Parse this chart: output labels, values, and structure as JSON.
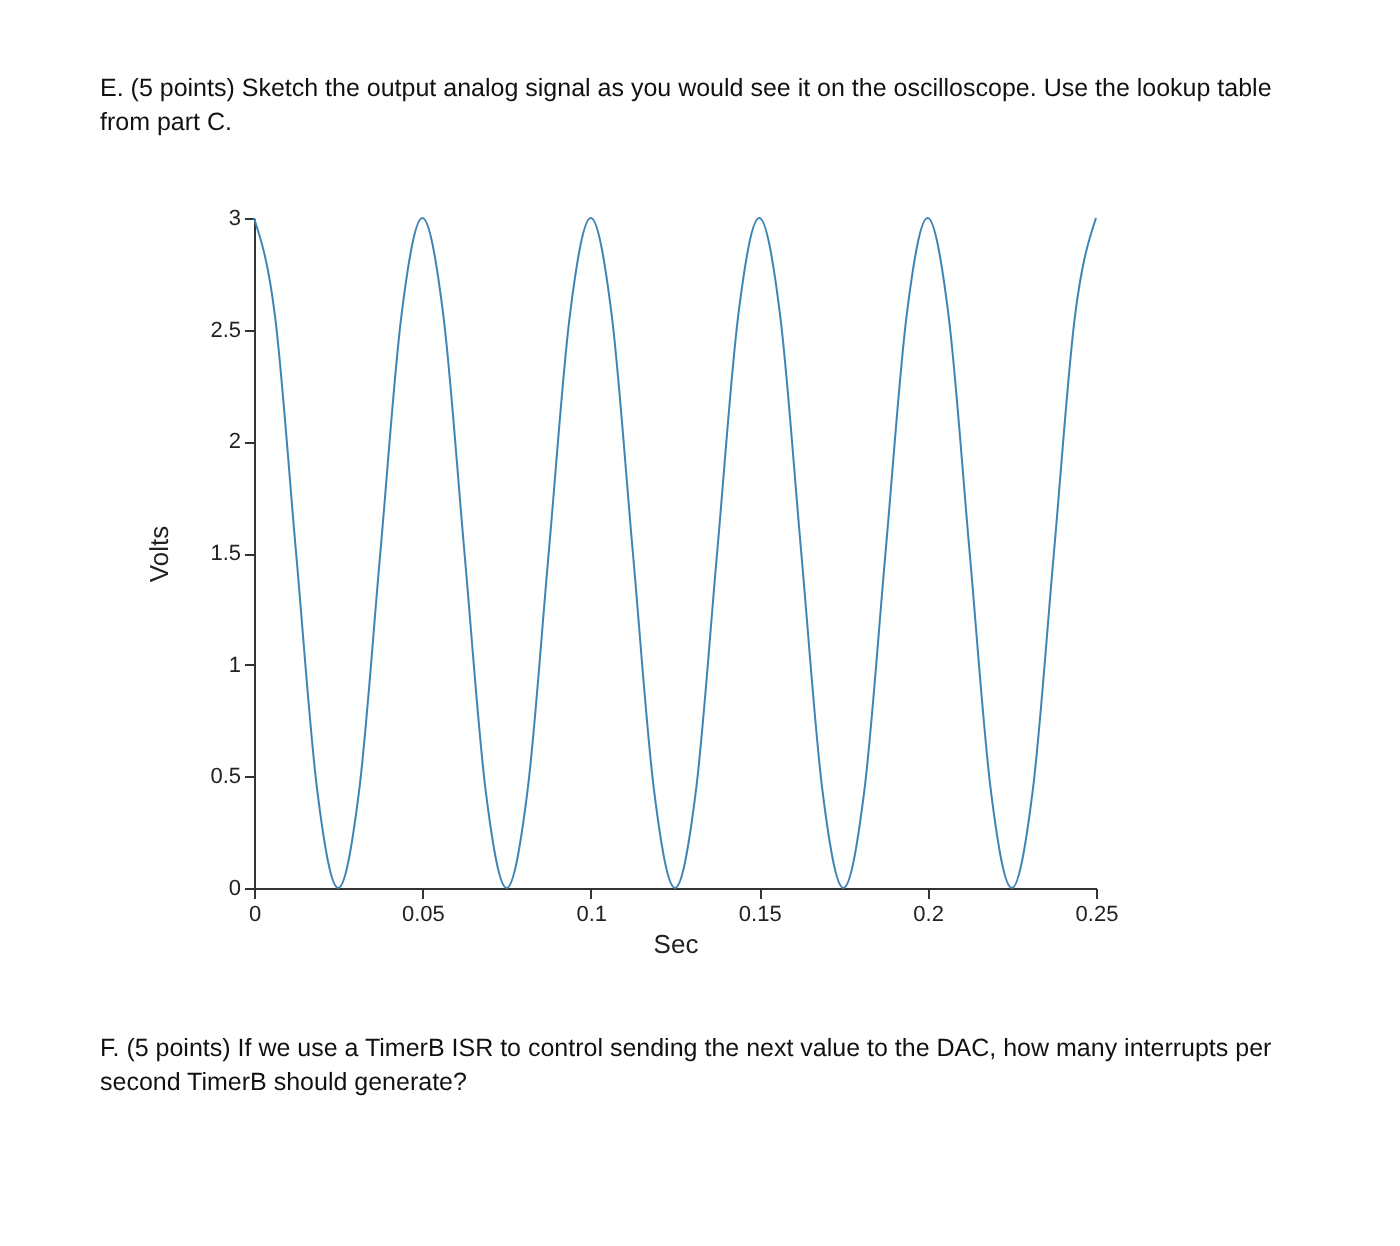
{
  "chart_data": {
    "type": "line",
    "title": "E. (5 points) Sketch the output analog signal as you would see it on the oscilloscope. Use the lookup table from part C.",
    "xlabel": "Sec",
    "ylabel": "Volts",
    "color": "#3d85b5",
    "grid": false,
    "marker": "none",
    "x": [
      0,
      0.00625,
      0.0125,
      0.01875,
      0.025,
      0.03125,
      0.0375,
      0.04375,
      0.05,
      0.05625,
      0.0625,
      0.06875,
      0.075,
      0.08125,
      0.0875,
      0.09375,
      0.1,
      0.10625,
      0.1125,
      0.11875,
      0.125,
      0.13125,
      0.1375,
      0.14375,
      0.15,
      0.15625,
      0.1625,
      0.16875,
      0.175,
      0.18125,
      0.1875,
      0.19375,
      0.2,
      0.20625,
      0.2125,
      0.21875,
      0.225,
      0.23125,
      0.2375,
      0.24375,
      0.25
    ],
    "values": [
      3,
      2.56,
      1.5,
      0.44,
      0,
      0.44,
      1.5,
      2.56,
      3,
      2.56,
      1.5,
      0.44,
      0,
      0.44,
      1.5,
      2.56,
      3,
      2.56,
      1.5,
      0.44,
      0,
      0.44,
      1.5,
      2.56,
      3,
      2.56,
      1.5,
      0.44,
      0,
      0.44,
      1.5,
      2.56,
      3,
      2.56,
      1.5,
      0.44,
      0,
      0.44,
      1.5,
      2.56,
      3
    ],
    "xlim": [
      0,
      0.25
    ],
    "ylim": [
      0,
      3
    ],
    "xticks": [
      0,
      0.05,
      0.1,
      0.15,
      0.2,
      0.25
    ],
    "yticks": [
      0,
      0.5,
      1,
      1.5,
      2,
      2.5,
      3
    ],
    "annotations": [
      "F. (5 points) If we use a TimerB ISR to control sending the next value to the DAC, how many interrupts per second TimerB should generate?"
    ]
  }
}
